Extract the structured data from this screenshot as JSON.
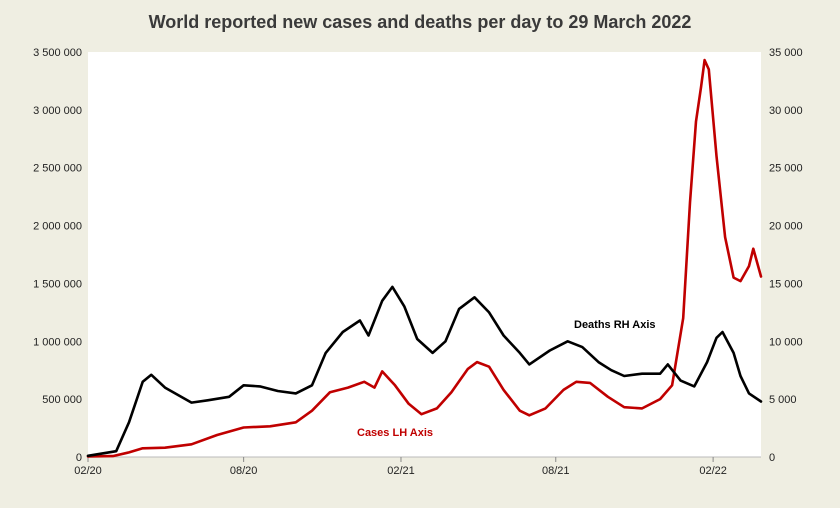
{
  "chart_data": {
    "type": "line",
    "title": "World reported new cases and deaths per day to 29 March 2022",
    "x_ticks": [
      "02/20",
      "08/20",
      "02/21",
      "08/21",
      "02/22"
    ],
    "x_range": [
      "2020-02-01",
      "2022-03-29"
    ],
    "y_left": {
      "range": [
        0,
        3500000
      ],
      "ticks": [
        "0",
        "500 000",
        "1 000 000",
        "1 500 000",
        "2 000 000",
        "2 500 000",
        "3 000 000",
        "3 500 000"
      ],
      "tick_values": [
        0,
        500000,
        1000000,
        1500000,
        2000000,
        2500000,
        3000000,
        3500000
      ]
    },
    "y_right": {
      "range": [
        0,
        35000
      ],
      "ticks": [
        "0",
        "5 000",
        "10 000",
        "15 000",
        "20 000",
        "25 000",
        "30 000",
        "35 000"
      ],
      "tick_values": [
        0,
        5000,
        10000,
        15000,
        20000,
        25000,
        30000,
        35000
      ]
    },
    "grid": false,
    "series": [
      {
        "name": "Cases LH Axis",
        "axis": "left",
        "color": "#c00000",
        "points": [
          [
            "2020-02-01",
            5000
          ],
          [
            "2020-03-01",
            8000
          ],
          [
            "2020-03-20",
            40000
          ],
          [
            "2020-04-05",
            75000
          ],
          [
            "2020-05-01",
            80000
          ],
          [
            "2020-06-01",
            110000
          ],
          [
            "2020-07-01",
            190000
          ],
          [
            "2020-08-01",
            255000
          ],
          [
            "2020-09-01",
            265000
          ],
          [
            "2020-10-01",
            300000
          ],
          [
            "2020-10-20",
            400000
          ],
          [
            "2020-11-10",
            560000
          ],
          [
            "2020-12-01",
            600000
          ],
          [
            "2020-12-20",
            650000
          ],
          [
            "2021-01-01",
            600000
          ],
          [
            "2021-01-10",
            740000
          ],
          [
            "2021-01-25",
            620000
          ],
          [
            "2021-02-10",
            460000
          ],
          [
            "2021-02-25",
            370000
          ],
          [
            "2021-03-15",
            420000
          ],
          [
            "2021-04-01",
            560000
          ],
          [
            "2021-04-20",
            760000
          ],
          [
            "2021-05-01",
            820000
          ],
          [
            "2021-05-15",
            780000
          ],
          [
            "2021-06-01",
            580000
          ],
          [
            "2021-06-20",
            400000
          ],
          [
            "2021-07-01",
            360000
          ],
          [
            "2021-07-20",
            420000
          ],
          [
            "2021-08-10",
            580000
          ],
          [
            "2021-08-25",
            650000
          ],
          [
            "2021-09-10",
            640000
          ],
          [
            "2021-10-01",
            520000
          ],
          [
            "2021-10-20",
            430000
          ],
          [
            "2021-11-10",
            420000
          ],
          [
            "2021-12-01",
            500000
          ],
          [
            "2021-12-15",
            620000
          ],
          [
            "2021-12-28",
            1200000
          ],
          [
            "2022-01-05",
            2200000
          ],
          [
            "2022-01-12",
            2900000
          ],
          [
            "2022-01-18",
            3200000
          ],
          [
            "2022-01-22",
            3430000
          ],
          [
            "2022-01-27",
            3350000
          ],
          [
            "2022-02-05",
            2600000
          ],
          [
            "2022-02-15",
            1900000
          ],
          [
            "2022-02-25",
            1550000
          ],
          [
            "2022-03-05",
            1520000
          ],
          [
            "2022-03-15",
            1650000
          ],
          [
            "2022-03-20",
            1800000
          ],
          [
            "2022-03-29",
            1560000
          ]
        ]
      },
      {
        "name": "Deaths RH Axis",
        "axis": "right",
        "color": "#000000",
        "points": [
          [
            "2020-02-01",
            100
          ],
          [
            "2020-03-05",
            500
          ],
          [
            "2020-03-20",
            3000
          ],
          [
            "2020-04-05",
            6500
          ],
          [
            "2020-04-15",
            7100
          ],
          [
            "2020-05-01",
            6000
          ],
          [
            "2020-06-01",
            4700
          ],
          [
            "2020-06-20",
            4900
          ],
          [
            "2020-07-15",
            5200
          ],
          [
            "2020-08-01",
            6200
          ],
          [
            "2020-08-20",
            6100
          ],
          [
            "2020-09-10",
            5700
          ],
          [
            "2020-10-01",
            5500
          ],
          [
            "2020-10-20",
            6200
          ],
          [
            "2020-11-05",
            9000
          ],
          [
            "2020-11-25",
            10800
          ],
          [
            "2020-12-15",
            11800
          ],
          [
            "2020-12-25",
            10500
          ],
          [
            "2021-01-10",
            13500
          ],
          [
            "2021-01-22",
            14700
          ],
          [
            "2021-02-05",
            13000
          ],
          [
            "2021-02-20",
            10200
          ],
          [
            "2021-03-10",
            9000
          ],
          [
            "2021-03-25",
            10000
          ],
          [
            "2021-04-10",
            12800
          ],
          [
            "2021-04-28",
            13800
          ],
          [
            "2021-05-15",
            12500
          ],
          [
            "2021-06-01",
            10500
          ],
          [
            "2021-06-20",
            9000
          ],
          [
            "2021-07-01",
            8000
          ],
          [
            "2021-07-25",
            9200
          ],
          [
            "2021-08-15",
            10000
          ],
          [
            "2021-09-01",
            9500
          ],
          [
            "2021-09-20",
            8200
          ],
          [
            "2021-10-05",
            7500
          ],
          [
            "2021-10-20",
            7000
          ],
          [
            "2021-11-10",
            7200
          ],
          [
            "2021-12-01",
            7200
          ],
          [
            "2021-12-10",
            8000
          ],
          [
            "2021-12-25",
            6600
          ],
          [
            "2022-01-10",
            6100
          ],
          [
            "2022-01-25",
            8200
          ],
          [
            "2022-02-05",
            10300
          ],
          [
            "2022-02-12",
            10800
          ],
          [
            "2022-02-25",
            9000
          ],
          [
            "2022-03-05",
            7000
          ],
          [
            "2022-03-15",
            5500
          ],
          [
            "2022-03-29",
            4800
          ]
        ]
      }
    ],
    "annotations": [
      {
        "text": "Deaths RH Axis",
        "color": "#000000"
      },
      {
        "text": "Cases LH Axis",
        "color": "#c00000"
      }
    ]
  }
}
